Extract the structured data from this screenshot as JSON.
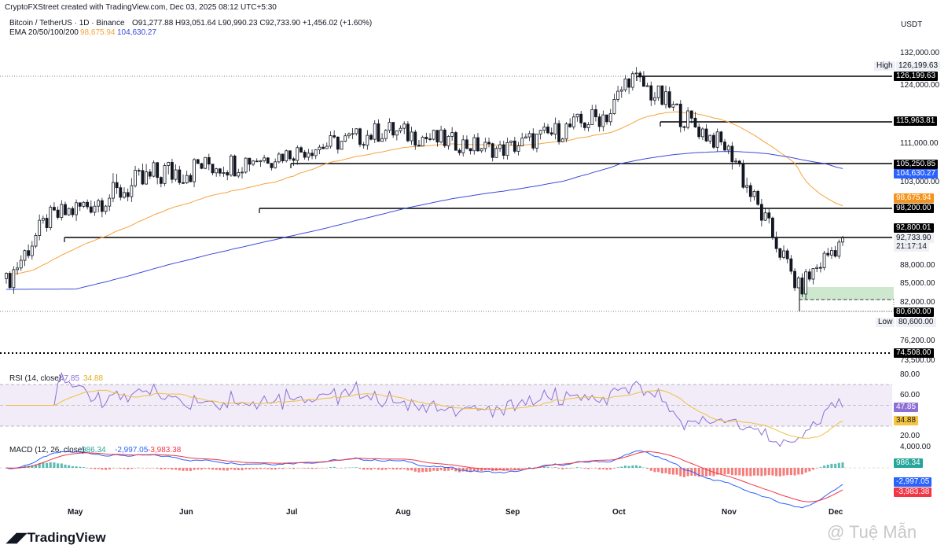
{
  "header": {
    "created": "CryptoFXStreet created with TradingView.com, Dec 03, 2025 08:12 UTC+5:30",
    "symbol_line": "Bitcoin / TetherUS · 1D · Binance",
    "ohlc_line": "O91,277.88  H93,051.64  L90,990.23  C92,733.90  +1,456.02 (+1.60%)",
    "ema_label": "EMA 20/50/100/200",
    "ema_50": "98,675.94",
    "ema_200": "104,630.27",
    "currency": "USDT"
  },
  "colors": {
    "up": "#131722",
    "down": "#131722",
    "ema50": "#f7a23b",
    "ema200": "#3b4bd8",
    "rsi": "#8e6fd6",
    "rsi_ma": "#f0c040",
    "macd": "#2962ff",
    "signal": "#f23645",
    "hist_pos": "#26a69a",
    "hist_neg": "#ef5350"
  },
  "price_axis": {
    "ticks": [
      "132,000.00",
      "124,000.00",
      "111,000.00",
      "103,000.00",
      "88,000.00",
      "85,000.00",
      "82,000.00",
      "76,200.00",
      "73,500.00"
    ]
  },
  "price_tags": {
    "high_label": "High",
    "high_value": "126,199.63",
    "l1": "126,199.63",
    "l2": "115,963.81",
    "l3": "105,250.85",
    "l4": "104,630.27",
    "l5": "98,675.94",
    "l6": "98,200.00",
    "l7": "92,800.01",
    "l8": "92,733.90",
    "countdown": "21:17:14",
    "l9": "80,600.00",
    "low_label": "Low",
    "low_value": "80,600.00",
    "l10": "74,508.00"
  },
  "rsi": {
    "label": "RSI (14, close)",
    "value": "47.85",
    "ma_value": "34.88",
    "ticks": [
      "80.00",
      "60.00",
      "20.00"
    ]
  },
  "macd": {
    "label": "MACD (12, 26, close)",
    "hist": "986.34",
    "macd": "-2,997.05",
    "signal": "-3,983.38",
    "ticks": [
      "4,000.00"
    ]
  },
  "months": [
    "May",
    "Jun",
    "Jul",
    "Aug",
    "Sep",
    "Oct",
    "Nov",
    "Dec"
  ],
  "footer": {
    "logo": "TradingView",
    "watermark": "@ Tuệ Mẫn"
  },
  "chart_data": {
    "type": "candlestick",
    "title": "Bitcoin / TetherUS · 1D · Binance",
    "x": [
      "Apr 20",
      "May 1",
      "Jun 1",
      "Jul 1",
      "Aug 1",
      "Sep 1",
      "Oct 1",
      "Oct 6",
      "Nov 1",
      "Nov 21",
      "Dec 3"
    ],
    "close": [
      85000,
      96000,
      104000,
      107000,
      114000,
      109000,
      118000,
      126199,
      110000,
      84000,
      92733.9
    ],
    "horizontal_levels": [
      126199.63,
      115963.81,
      105250.85,
      98200.0,
      92800.01,
      80600.0,
      74508.0
    ],
    "ema50_last": 98675.94,
    "ema200_last": 104630.27,
    "high": 126199.63,
    "low": 80600.0,
    "rsi_last": 47.85,
    "rsi_ma_last": 34.88,
    "macd_hist_last": 986.34,
    "macd_last": -2997.05,
    "signal_last": -3983.38
  }
}
